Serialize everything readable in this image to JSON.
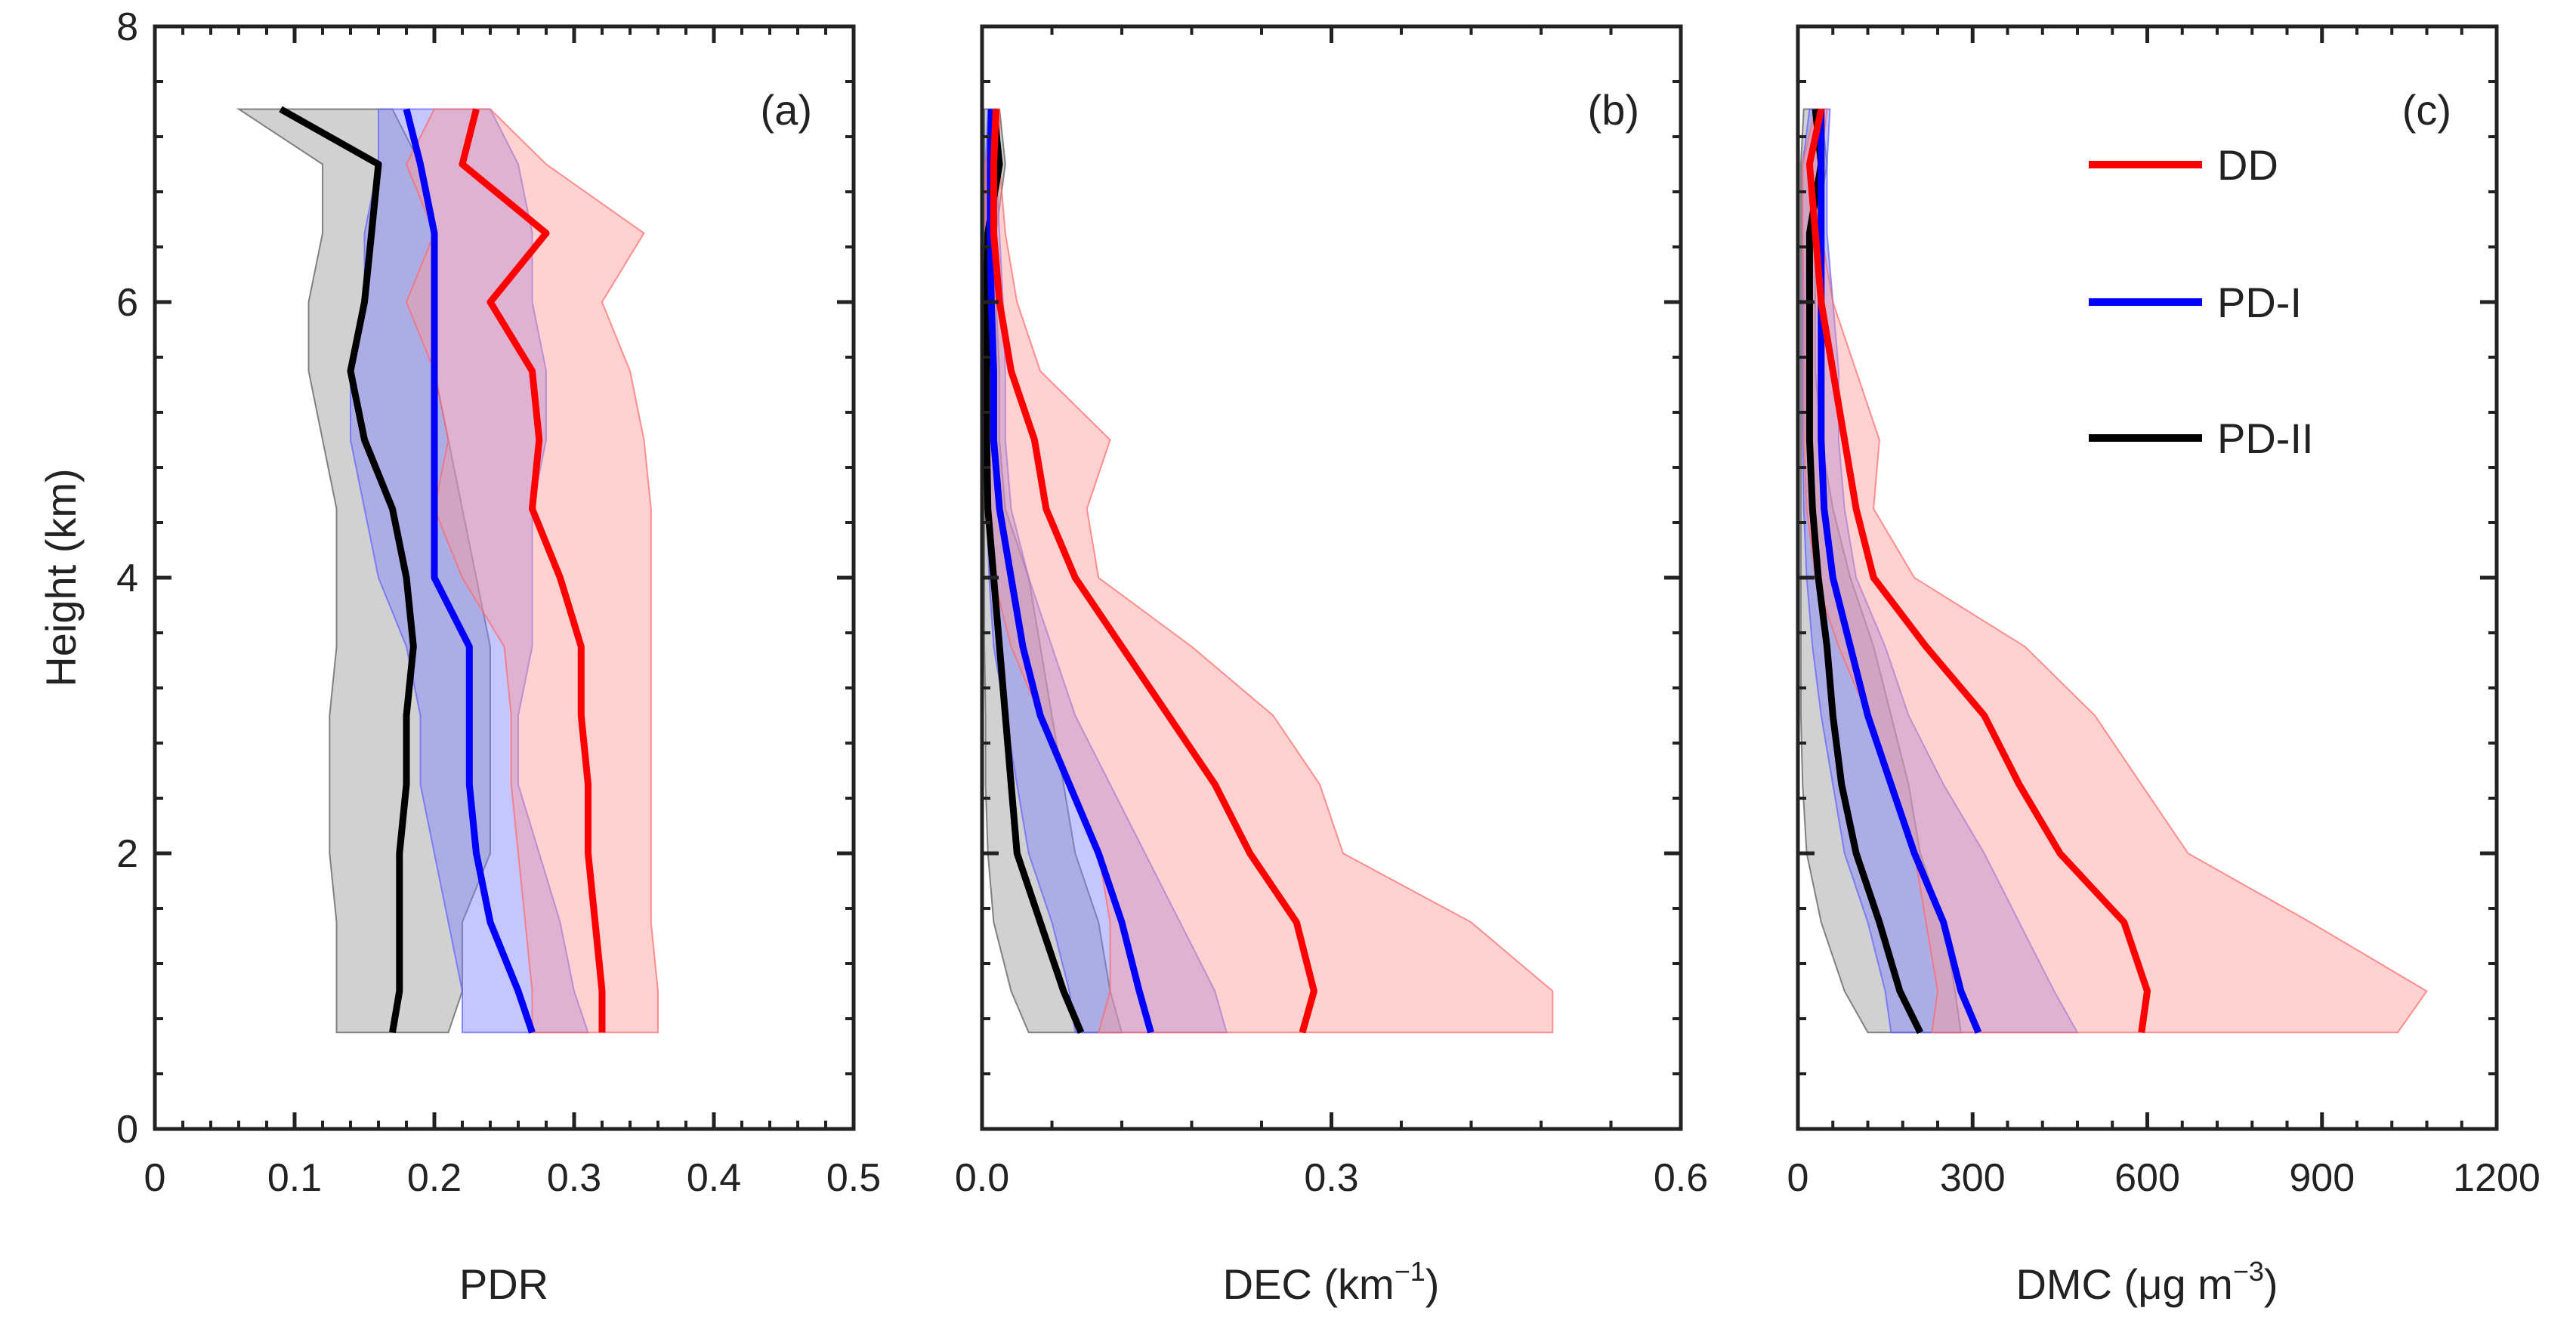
{
  "colors": {
    "DD": "#ff0000",
    "PD-I": "#0000ff",
    "PD-II": "#000000"
  },
  "legend": [
    {
      "key": "DD",
      "label": "DD"
    },
    {
      "key": "PD-I",
      "label": "PD-I"
    },
    {
      "key": "PD-II",
      "label": "PD-II"
    }
  ],
  "chart_data": [
    {
      "type": "line",
      "panel": "(a)",
      "xlabel": "PDR",
      "ylabel": "Height (km)",
      "xlim": [
        0,
        0.5
      ],
      "ylim": [
        0,
        8
      ],
      "xticks": [
        0,
        0.1,
        0.2,
        0.3,
        0.4,
        0.5
      ],
      "xtick_labels": [
        "0",
        "0.1",
        "0.2",
        "0.3",
        "0.4",
        "0.5"
      ],
      "yticks": [
        0,
        2,
        4,
        6,
        8
      ],
      "ytick_labels": [
        "0",
        "2",
        "4",
        "6",
        "8"
      ],
      "y": [
        0.7,
        1.0,
        1.5,
        2.0,
        2.5,
        3.0,
        3.5,
        4.0,
        4.5,
        5.0,
        5.5,
        6.0,
        6.5,
        7.0,
        7.4
      ],
      "series": [
        {
          "name": "DD",
          "values": [
            0.32,
            0.32,
            0.315,
            0.31,
            0.31,
            0.305,
            0.305,
            0.29,
            0.27,
            0.275,
            0.27,
            0.24,
            0.28,
            0.22,
            0.23
          ],
          "lower": [
            0.27,
            0.27,
            0.265,
            0.26,
            0.255,
            0.255,
            0.25,
            0.22,
            0.2,
            0.21,
            0.2,
            0.18,
            0.2,
            0.18,
            0.2
          ],
          "upper": [
            0.36,
            0.36,
            0.355,
            0.355,
            0.355,
            0.355,
            0.355,
            0.355,
            0.355,
            0.35,
            0.34,
            0.32,
            0.35,
            0.28,
            0.24
          ]
        },
        {
          "name": "PD-I",
          "values": [
            0.27,
            0.26,
            0.24,
            0.23,
            0.225,
            0.225,
            0.225,
            0.2,
            0.2,
            0.2,
            0.2,
            0.2,
            0.2,
            0.19,
            0.18
          ],
          "lower": [
            0.22,
            0.22,
            0.21,
            0.2,
            0.19,
            0.19,
            0.18,
            0.16,
            0.15,
            0.14,
            0.14,
            0.15,
            0.15,
            0.16,
            0.16
          ],
          "upper": [
            0.31,
            0.3,
            0.29,
            0.275,
            0.26,
            0.26,
            0.27,
            0.27,
            0.27,
            0.28,
            0.28,
            0.27,
            0.27,
            0.26,
            0.24
          ]
        },
        {
          "name": "PD-II",
          "values": [
            0.17,
            0.175,
            0.175,
            0.175,
            0.18,
            0.18,
            0.185,
            0.18,
            0.17,
            0.15,
            0.14,
            0.15,
            0.155,
            0.16,
            0.09
          ],
          "lower": [
            0.13,
            0.13,
            0.13,
            0.125,
            0.125,
            0.125,
            0.13,
            0.13,
            0.13,
            0.12,
            0.11,
            0.11,
            0.12,
            0.12,
            0.06
          ],
          "upper": [
            0.21,
            0.22,
            0.22,
            0.24,
            0.24,
            0.24,
            0.24,
            0.23,
            0.22,
            0.21,
            0.2,
            0.2,
            0.2,
            0.19,
            0.17
          ]
        }
      ]
    },
    {
      "type": "line",
      "panel": "(b)",
      "xlabel": "DEC (km",
      "xlabel_sup": "−1",
      "xlabel_tail": ")",
      "xlim": [
        0,
        0.6
      ],
      "ylim": [
        0,
        8
      ],
      "xticks": [
        0,
        0.3,
        0.6
      ],
      "xtick_labels": [
        "0.0",
        "0.3",
        "0.6"
      ],
      "yticks": [
        0,
        2,
        4,
        6,
        8
      ],
      "y": [
        0.7,
        1.0,
        1.5,
        2.0,
        2.5,
        3.0,
        3.5,
        4.0,
        4.5,
        5.0,
        5.5,
        6.0,
        6.5,
        7.0,
        7.4
      ],
      "series": [
        {
          "name": "DD",
          "values": [
            0.275,
            0.285,
            0.27,
            0.23,
            0.2,
            0.16,
            0.12,
            0.08,
            0.055,
            0.045,
            0.025,
            0.015,
            0.01,
            0.01,
            0.012
          ],
          "lower": [
            0.1,
            0.11,
            0.11,
            0.1,
            0.075,
            0.05,
            0.025,
            0.01,
            0.005,
            0.005,
            0.005,
            0.004,
            0.003,
            0.003,
            0.01
          ],
          "upper": [
            0.49,
            0.49,
            0.42,
            0.31,
            0.29,
            0.25,
            0.18,
            0.1,
            0.09,
            0.11,
            0.05,
            0.03,
            0.02,
            0.015,
            0.015
          ]
        },
        {
          "name": "PD-I",
          "values": [
            0.145,
            0.135,
            0.12,
            0.1,
            0.075,
            0.05,
            0.035,
            0.025,
            0.015,
            0.01,
            0.01,
            0.008,
            0.007,
            0.007,
            0.008
          ],
          "lower": [
            0.08,
            0.075,
            0.06,
            0.04,
            0.03,
            0.02,
            0.01,
            0.006,
            0.004,
            0.003,
            0.003,
            0.003,
            0.003,
            0.003,
            0.005
          ],
          "upper": [
            0.21,
            0.2,
            0.17,
            0.14,
            0.11,
            0.08,
            0.06,
            0.04,
            0.025,
            0.02,
            0.02,
            0.018,
            0.015,
            0.012,
            0.012
          ]
        },
        {
          "name": "PD-II",
          "values": [
            0.085,
            0.07,
            0.05,
            0.03,
            0.025,
            0.02,
            0.015,
            0.01,
            0.005,
            0.004,
            0.004,
            0.004,
            0.005,
            0.015,
            0.01
          ],
          "lower": [
            0.04,
            0.025,
            0.01,
            0.005,
            0.003,
            0.003,
            0.002,
            0.002,
            0.002,
            0.002,
            0.002,
            0.002,
            0.002,
            0.002,
            0.002
          ],
          "upper": [
            0.12,
            0.11,
            0.1,
            0.08,
            0.07,
            0.06,
            0.05,
            0.04,
            0.02,
            0.015,
            0.015,
            0.012,
            0.012,
            0.02,
            0.015
          ]
        }
      ]
    },
    {
      "type": "line",
      "panel": "(c)",
      "xlabel": "DMC (μg m",
      "xlabel_sup": "−3",
      "xlabel_tail": ")",
      "xlim": [
        0,
        1200
      ],
      "ylim": [
        0,
        8
      ],
      "xticks": [
        0,
        300,
        600,
        900,
        1200
      ],
      "xtick_labels": [
        "0",
        "300",
        "600",
        "900",
        "1200"
      ],
      "yticks": [
        0,
        2,
        4,
        6,
        8
      ],
      "y": [
        0.7,
        1.0,
        1.5,
        2.0,
        2.5,
        3.0,
        3.5,
        4.0,
        4.5,
        5.0,
        5.5,
        6.0,
        6.5,
        7.0,
        7.4
      ],
      "series": [
        {
          "name": "DD",
          "values": [
            590,
            600,
            560,
            450,
            380,
            320,
            220,
            130,
            100,
            80,
            60,
            40,
            30,
            20,
            40
          ],
          "lower": [
            230,
            240,
            220,
            200,
            160,
            120,
            70,
            30,
            15,
            10,
            10,
            10,
            8,
            8,
            30
          ],
          "upper": [
            1030,
            1080,
            880,
            670,
            590,
            510,
            390,
            200,
            130,
            140,
            100,
            60,
            40,
            40,
            50
          ]
        },
        {
          "name": "PD-I",
          "values": [
            310,
            280,
            250,
            200,
            160,
            120,
            90,
            60,
            45,
            40,
            40,
            40,
            40,
            40,
            40
          ],
          "lower": [
            160,
            150,
            120,
            80,
            60,
            40,
            25,
            15,
            10,
            8,
            8,
            8,
            8,
            8,
            20
          ],
          "upper": [
            480,
            440,
            380,
            320,
            250,
            190,
            150,
            100,
            80,
            70,
            70,
            60,
            50,
            50,
            55
          ]
        },
        {
          "name": "PD-II",
          "values": [
            210,
            175,
            140,
            100,
            75,
            60,
            50,
            35,
            25,
            20,
            20,
            20,
            20,
            40,
            30
          ],
          "lower": [
            120,
            80,
            40,
            15,
            8,
            5,
            5,
            5,
            5,
            5,
            5,
            5,
            5,
            5,
            10
          ],
          "upper": [
            280,
            270,
            250,
            210,
            190,
            160,
            130,
            90,
            60,
            40,
            30,
            30,
            30,
            50,
            40
          ]
        }
      ]
    }
  ]
}
